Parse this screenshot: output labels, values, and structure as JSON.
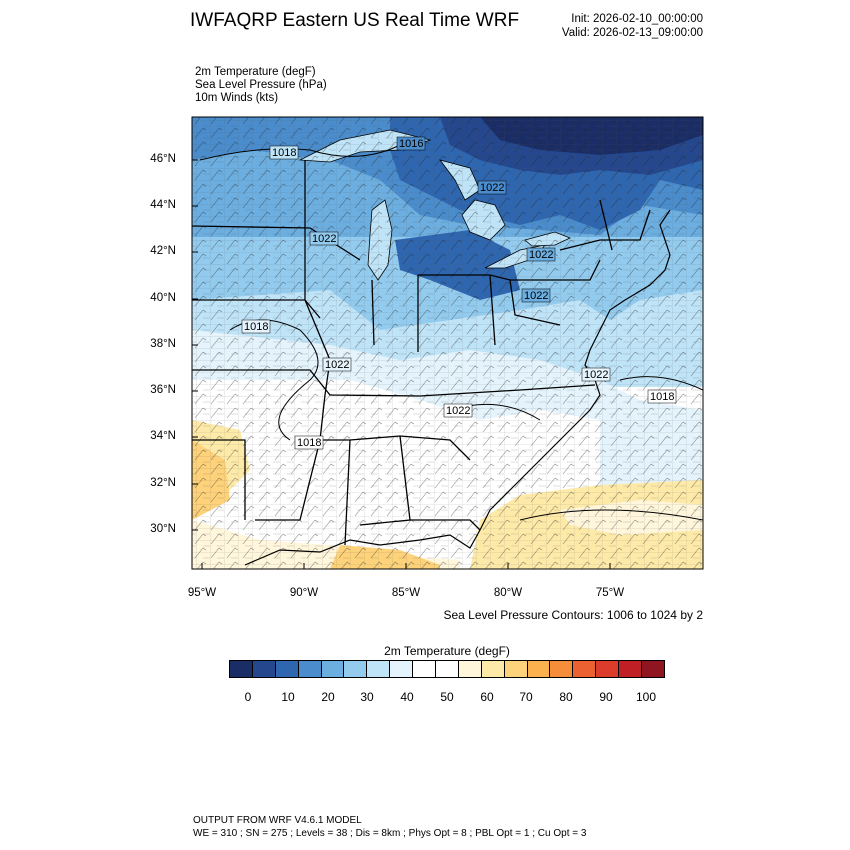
{
  "header": {
    "title": "IWFAQRP Eastern US Real Time WRF",
    "init": "Init: 2026-02-10_00:00:00",
    "valid": "Valid: 2026-02-13_09:00:00"
  },
  "fields": [
    "2m Temperature   (degF)",
    "Sea Level Pressure   (hPa)",
    "10m Winds   (kts)"
  ],
  "map": {
    "lat_labels": [
      "46°N",
      "44°N",
      "42°N",
      "40°N",
      "38°N",
      "36°N",
      "34°N",
      "32°N",
      "30°N"
    ],
    "lon_labels": [
      "95°W",
      "90°W",
      "85°W",
      "80°W",
      "75°W"
    ],
    "pressure_labels": [
      "1018",
      "1016",
      "1022",
      "1022",
      "1022",
      "1022",
      "1018",
      "1022",
      "1022",
      "1022",
      "1018",
      "1018"
    ],
    "extent": {
      "lon_min": -95.5,
      "lon_max": -70.5,
      "lat_min": 28.5,
      "lat_max": 47.8
    }
  },
  "contour_note": "Sea Level Pressure Contours: 1006 to 1024 by 2",
  "colorbar": {
    "title": "2m Temperature  (degF)",
    "labels": [
      "0",
      "10",
      "20",
      "30",
      "40",
      "50",
      "60",
      "70",
      "80",
      "90",
      "100"
    ],
    "colors": [
      "#1b2d66",
      "#24478e",
      "#2e66b0",
      "#4a8ccc",
      "#6caee0",
      "#93cbee",
      "#bfe3f7",
      "#e4f3fc",
      "#ffffff",
      "#ffffff",
      "#fff6dc",
      "#feeaa8",
      "#fdd27a",
      "#fbb14d",
      "#f68d3a",
      "#ec6132",
      "#dc3c2c",
      "#c01f26",
      "#8f1620"
    ]
  },
  "footer": {
    "line1": "OUTPUT FROM WRF V4.6.1 MODEL",
    "line2": "WE = 310 ; SN = 275 ; Levels = 38 ; Dis = 8km ; Phys Opt = 8 ; PBL Opt = 1 ; Cu Opt = 3"
  }
}
